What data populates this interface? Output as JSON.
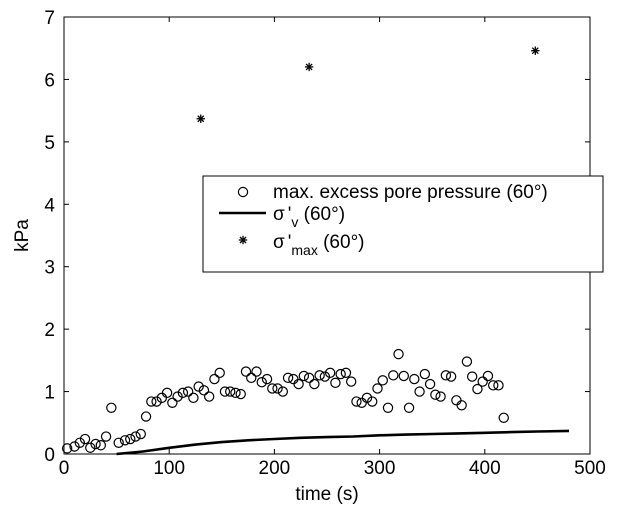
{
  "chart_data": {
    "type": "scatter",
    "xlabel": "time  (s)",
    "ylabel": "kPa",
    "xlim": [
      0,
      500
    ],
    "ylim": [
      0,
      7
    ],
    "x_ticks": [
      0,
      100,
      200,
      300,
      400,
      500
    ],
    "y_ticks": [
      0,
      1,
      2,
      3,
      4,
      5,
      6,
      7
    ],
    "grid": false,
    "legend": {
      "placement": "center-right",
      "entries": [
        {
          "marker": "circle",
          "text": "max. excess pore pressure (60°)"
        },
        {
          "marker": "line",
          "symbol": "σ",
          "prime": "'",
          "sub": "v",
          "suffix": " (60°)"
        },
        {
          "marker": "asterisk",
          "symbol": "σ",
          "prime": "'",
          "sub": "max",
          "suffix": " (60°)"
        }
      ]
    },
    "series": [
      {
        "marker": "circle",
        "points": [
          [
            3,
            0.09
          ],
          [
            10,
            0.12
          ],
          [
            15,
            0.18
          ],
          [
            20,
            0.24
          ],
          [
            25,
            0.1
          ],
          [
            30,
            0.16
          ],
          [
            35,
            0.14
          ],
          [
            40,
            0.28
          ],
          [
            45,
            0.74
          ],
          [
            52,
            0.18
          ],
          [
            58,
            0.22
          ],
          [
            63,
            0.24
          ],
          [
            68,
            0.28
          ],
          [
            73,
            0.32
          ],
          [
            78,
            0.6
          ],
          [
            83,
            0.84
          ],
          [
            88,
            0.84
          ],
          [
            93,
            0.9
          ],
          [
            98,
            0.98
          ],
          [
            103,
            0.82
          ],
          [
            108,
            0.92
          ],
          [
            113,
            0.98
          ],
          [
            118,
            1.0
          ],
          [
            123,
            0.9
          ],
          [
            128,
            1.08
          ],
          [
            133,
            1.02
          ],
          [
            138,
            0.92
          ],
          [
            143,
            1.2
          ],
          [
            148,
            1.3
          ],
          [
            153,
            1.0
          ],
          [
            158,
            1.0
          ],
          [
            163,
            0.98
          ],
          [
            168,
            0.96
          ],
          [
            173,
            1.32
          ],
          [
            178,
            1.22
          ],
          [
            183,
            1.32
          ],
          [
            188,
            1.15
          ],
          [
            193,
            1.2
          ],
          [
            198,
            1.05
          ],
          [
            203,
            1.05
          ],
          [
            208,
            1.0
          ],
          [
            213,
            1.22
          ],
          [
            218,
            1.2
          ],
          [
            223,
            1.12
          ],
          [
            228,
            1.25
          ],
          [
            233,
            1.22
          ],
          [
            238,
            1.12
          ],
          [
            243,
            1.26
          ],
          [
            248,
            1.24
          ],
          [
            253,
            1.3
          ],
          [
            258,
            1.14
          ],
          [
            263,
            1.28
          ],
          [
            268,
            1.3
          ],
          [
            273,
            1.16
          ],
          [
            278,
            0.84
          ],
          [
            283,
            0.82
          ],
          [
            288,
            0.9
          ],
          [
            293,
            0.84
          ],
          [
            298,
            1.05
          ],
          [
            303,
            1.18
          ],
          [
            308,
            0.74
          ],
          [
            313,
            1.26
          ],
          [
            318,
            1.6
          ],
          [
            323,
            1.25
          ],
          [
            328,
            0.74
          ],
          [
            333,
            1.2
          ],
          [
            338,
            1.0
          ],
          [
            343,
            1.28
          ],
          [
            348,
            1.12
          ],
          [
            353,
            0.95
          ],
          [
            358,
            0.92
          ],
          [
            363,
            1.26
          ],
          [
            368,
            1.24
          ],
          [
            373,
            0.86
          ],
          [
            378,
            0.78
          ],
          [
            383,
            1.48
          ],
          [
            388,
            1.24
          ],
          [
            393,
            1.04
          ],
          [
            398,
            1.16
          ],
          [
            403,
            1.25
          ],
          [
            408,
            1.1
          ],
          [
            413,
            1.1
          ],
          [
            418,
            0.58
          ]
        ]
      },
      {
        "marker": "line",
        "points": [
          [
            50,
            0.0
          ],
          [
            75,
            0.04
          ],
          [
            100,
            0.1
          ],
          [
            125,
            0.15
          ],
          [
            150,
            0.19
          ],
          [
            175,
            0.22
          ],
          [
            200,
            0.24
          ],
          [
            225,
            0.26
          ],
          [
            250,
            0.27
          ],
          [
            275,
            0.28
          ],
          [
            300,
            0.3
          ],
          [
            325,
            0.31
          ],
          [
            350,
            0.32
          ],
          [
            375,
            0.33
          ],
          [
            400,
            0.34
          ],
          [
            425,
            0.35
          ],
          [
            450,
            0.36
          ],
          [
            480,
            0.37
          ]
        ]
      },
      {
        "marker": "asterisk",
        "points": [
          [
            130,
            5.37
          ],
          [
            233,
            6.2
          ],
          [
            448,
            6.46
          ]
        ]
      }
    ]
  }
}
